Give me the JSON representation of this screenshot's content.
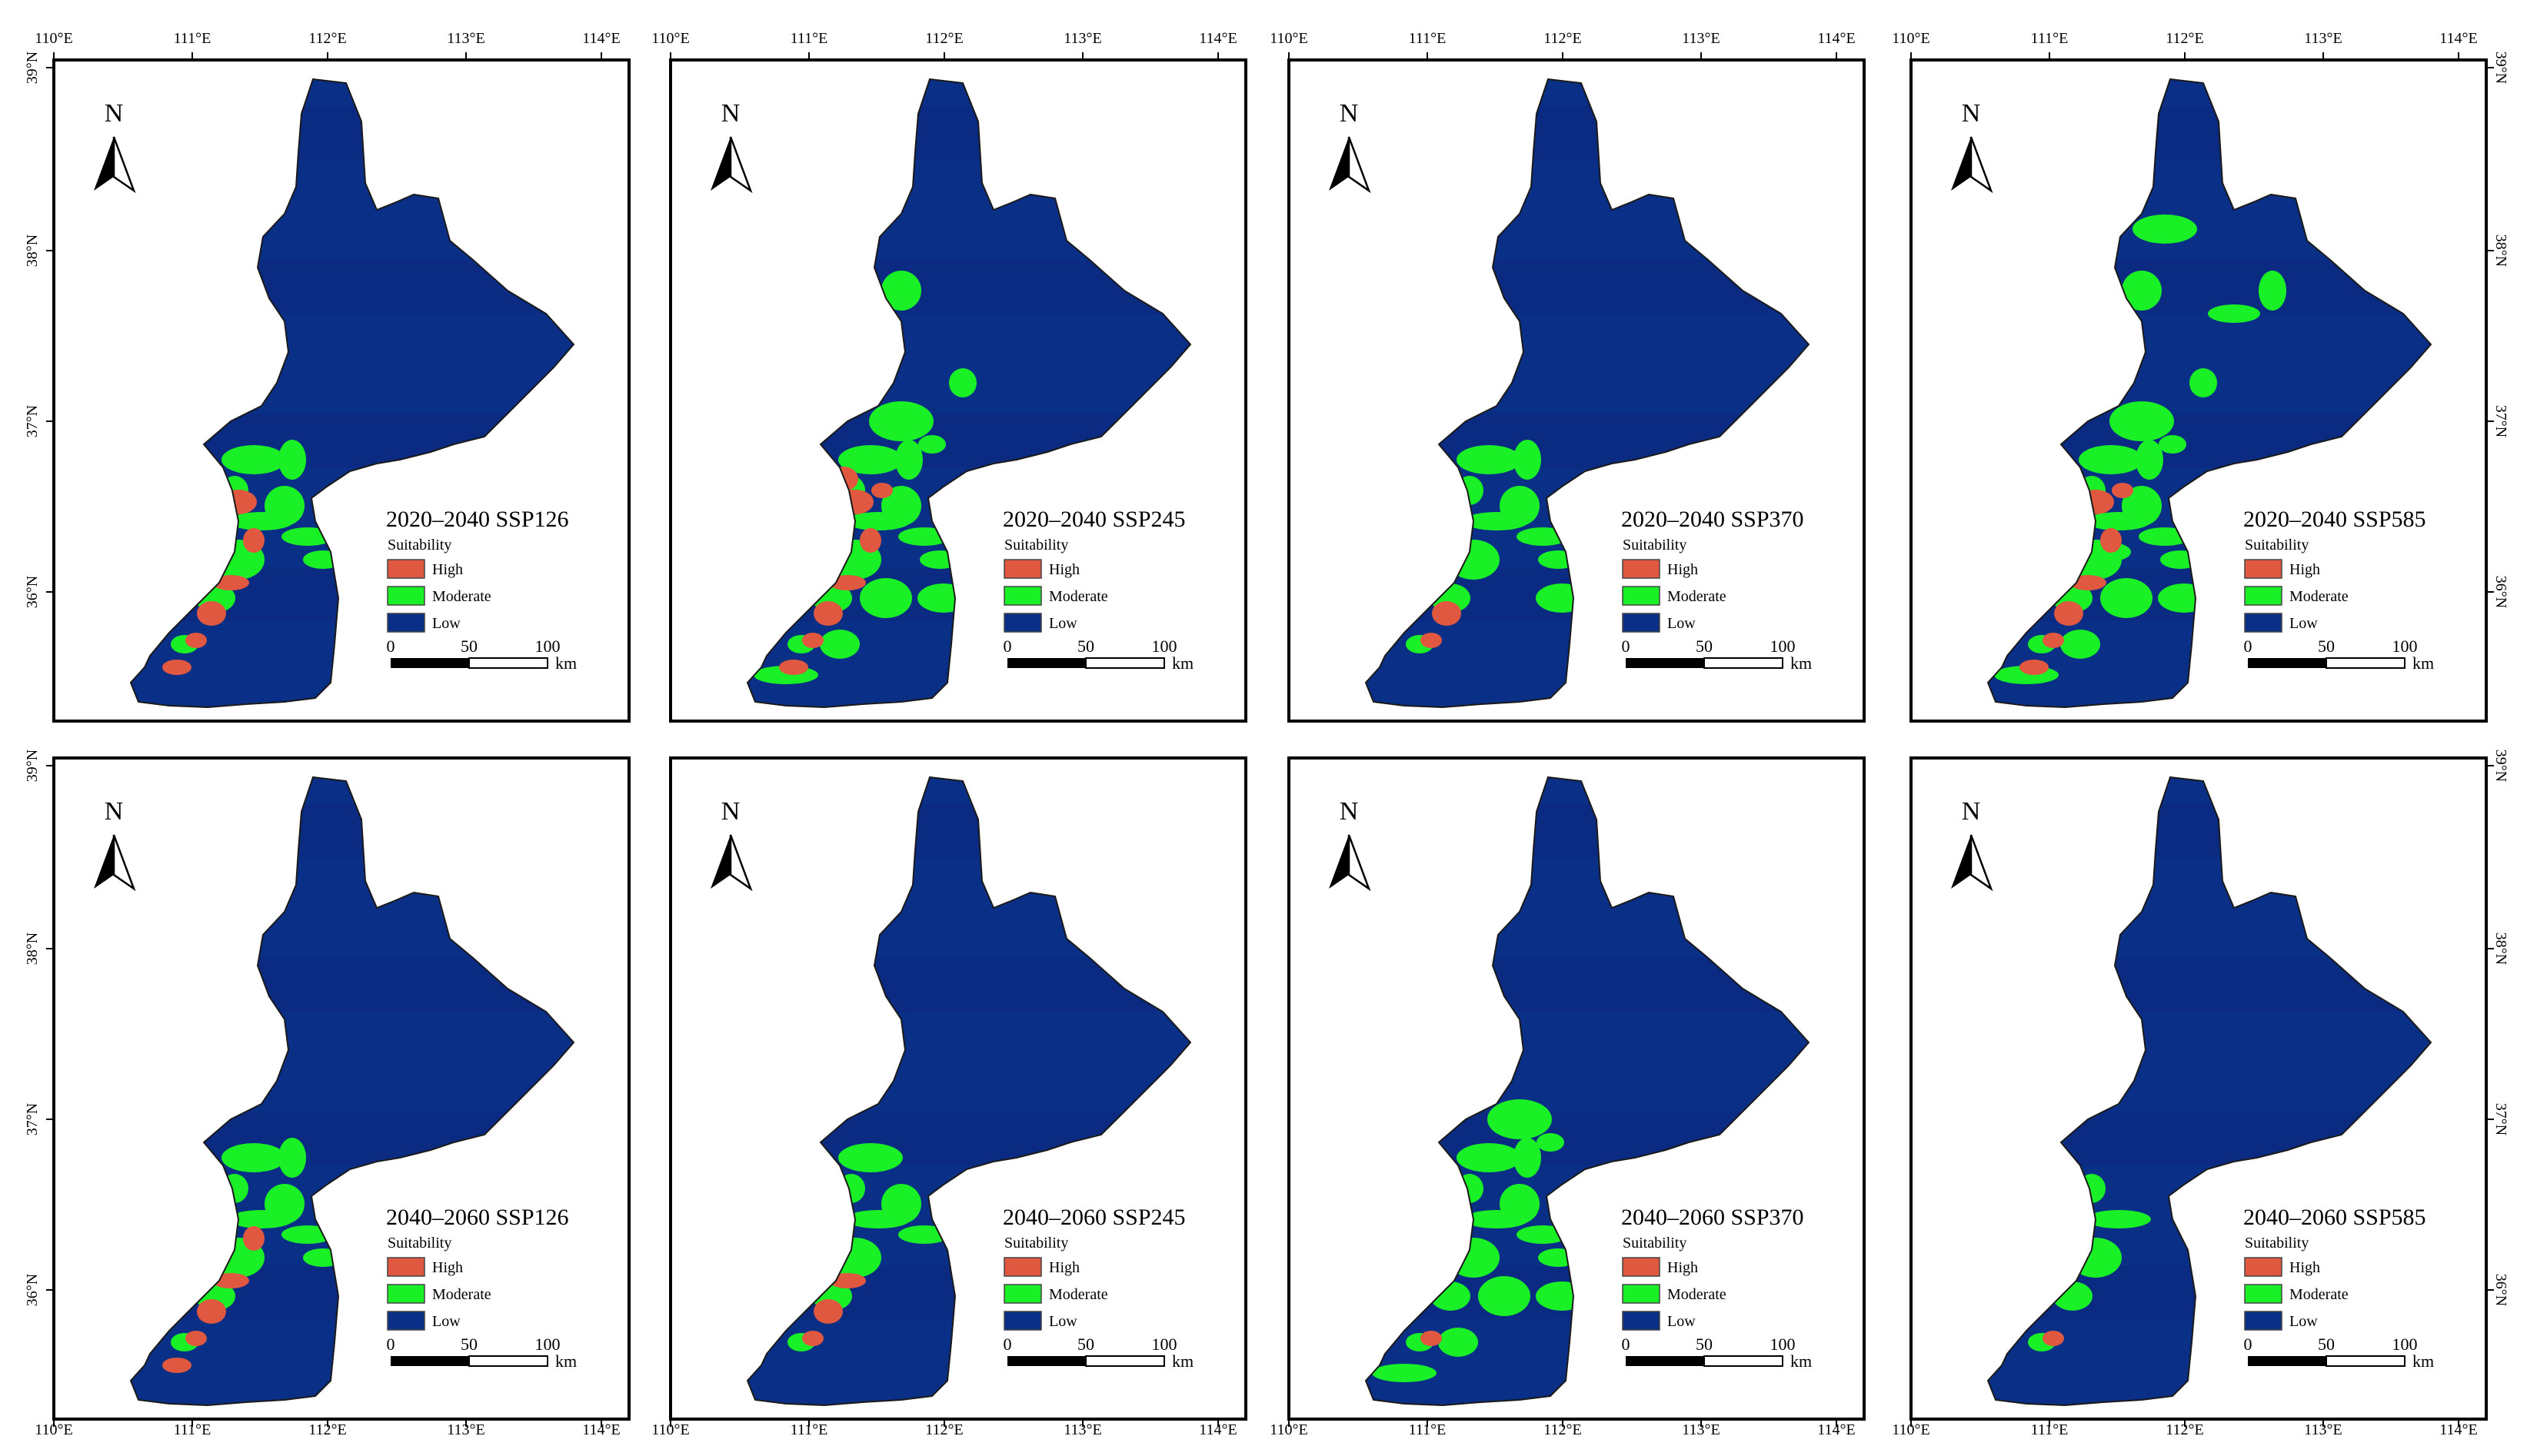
{
  "colors": {
    "high": "#E0583F",
    "moderate": "#19F026",
    "low": "#0A2F86",
    "band_dark": "#0A2A7E",
    "frame": "#000000"
  },
  "legend": {
    "heading": "Suitability",
    "items": [
      "High",
      "Moderate",
      "Low"
    ],
    "scale_labels": [
      "0",
      "50",
      "100"
    ],
    "scale_unit": "km"
  },
  "north_label": "N",
  "axes": {
    "lon_ticks": [
      "110°E",
      "111°E",
      "112°E",
      "113°E",
      "114°E"
    ],
    "lat_ticks": [
      "39°N",
      "38°N",
      "37°N",
      "36°N"
    ]
  },
  "panels": [
    {
      "title": "2020–2040 SSP126",
      "period": "2020–2040",
      "scenario": "SSP126",
      "moderate_level": 0.45,
      "high_level": 0.55
    },
    {
      "title": "2020–2040 SSP245",
      "period": "2020–2040",
      "scenario": "SSP245",
      "moderate_level": 0.85,
      "high_level": 0.75
    },
    {
      "title": "2020–2040 SSP370",
      "period": "2020–2040",
      "scenario": "SSP370",
      "moderate_level": 0.5,
      "high_level": 0.15
    },
    {
      "title": "2020–2040 SSP585",
      "period": "2020–2040",
      "scenario": "SSP585",
      "moderate_level": 1.0,
      "high_level": 0.7
    },
    {
      "title": "2040–2060 SSP126",
      "period": "2040–2060",
      "scenario": "SSP126",
      "moderate_level": 0.45,
      "high_level": 0.5
    },
    {
      "title": "2040–2060 SSP245",
      "period": "2040–2060",
      "scenario": "SSP245",
      "moderate_level": 0.35,
      "high_level": 0.3
    },
    {
      "title": "2040–2060 SSP370",
      "period": "2040–2060",
      "scenario": "SSP370",
      "moderate_level": 0.75,
      "high_level": 0.1
    },
    {
      "title": "2040–2060 SSP585",
      "period": "2040–2060",
      "scenario": "SSP585",
      "moderate_level": 0.2,
      "high_level": 0.05
    }
  ]
}
